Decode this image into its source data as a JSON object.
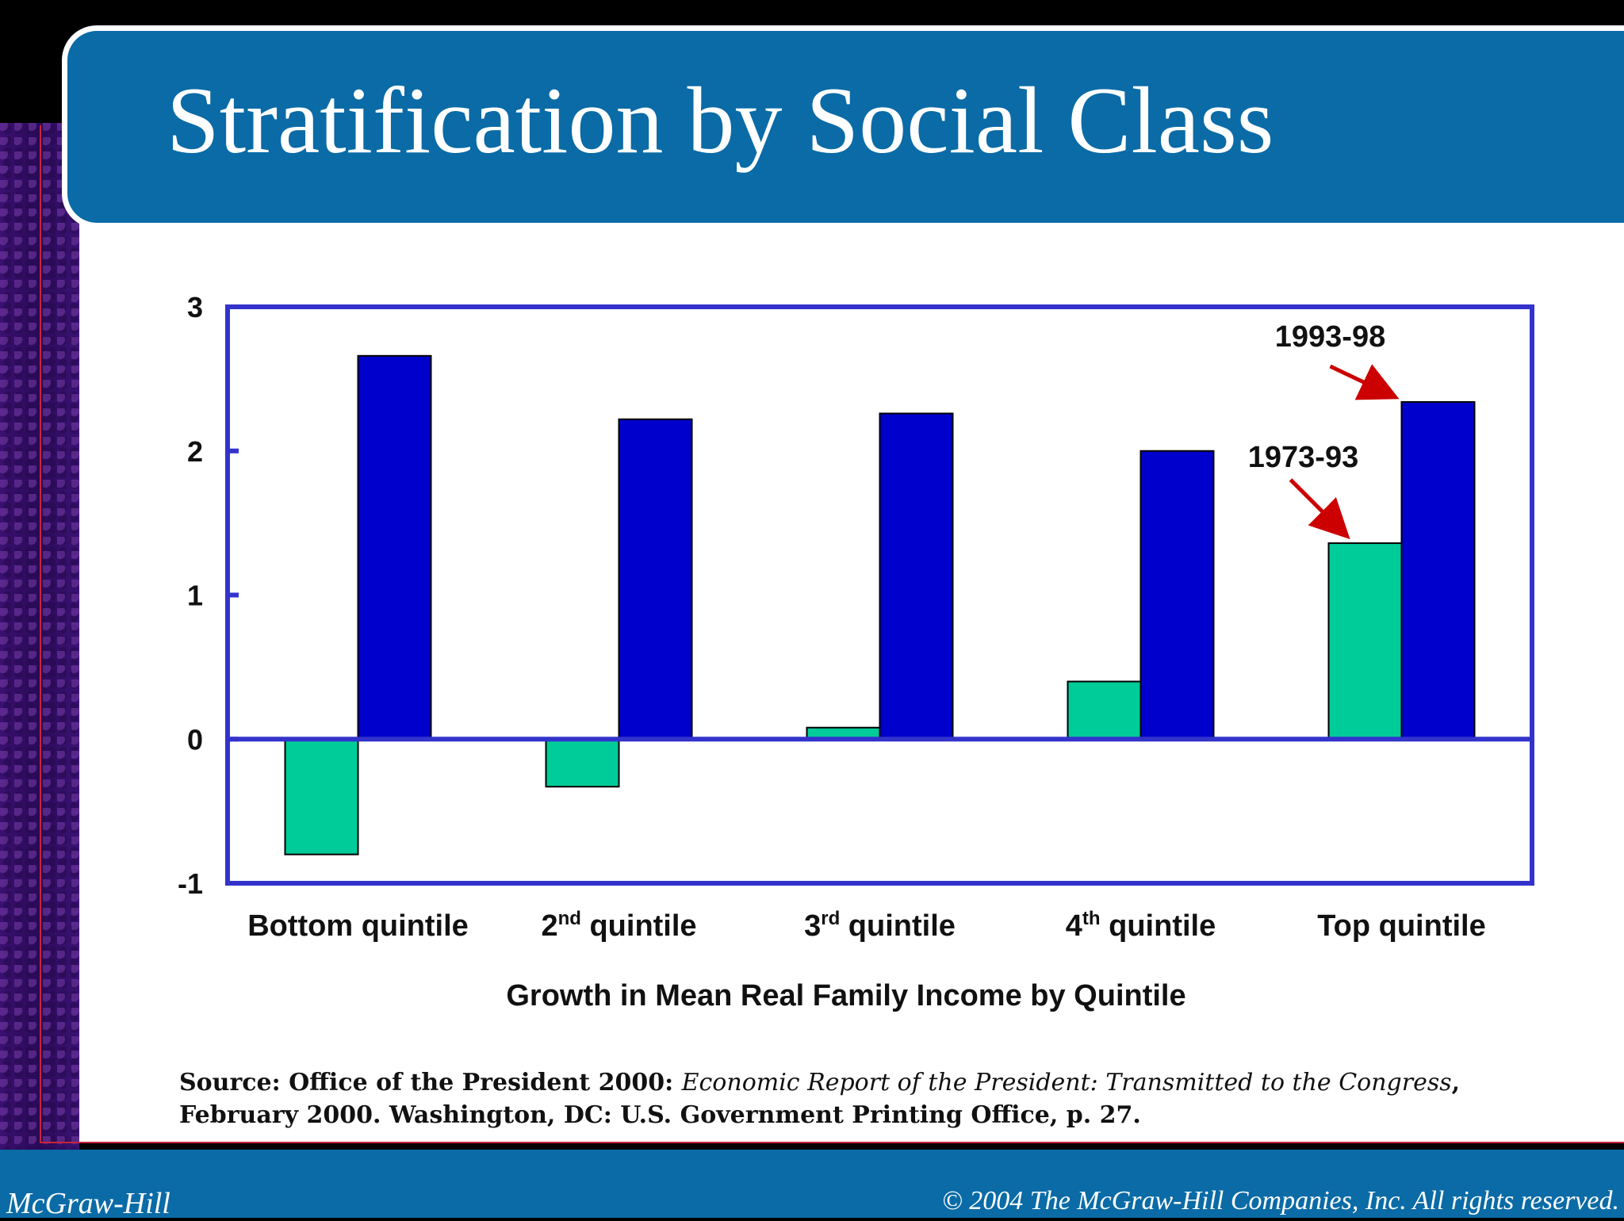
{
  "slide": {
    "title": "Stratification by Social Class",
    "source_prefix": "Source: Office of the President 2000: ",
    "source_italic": "Economic Report of the President: Transmitted to the Congress",
    "source_suffix": ", February 2000. Washington, DC: U.S. Government Printing Office, p. 27."
  },
  "footer": {
    "left": "McGraw-Hill",
    "right": "© 2004 The McGraw-Hill Companies, Inc. All rights reserved."
  },
  "chart_data": {
    "type": "bar",
    "title": "",
    "xlabel": "Growth in Mean Real Family Income by Quintile",
    "ylabel": "",
    "ylim": [
      -1,
      3
    ],
    "yticks": [
      -1,
      0,
      1,
      2,
      3
    ],
    "categories": [
      {
        "base": "Bottom quintile",
        "sup": "",
        "rest": ""
      },
      {
        "base": "2",
        "sup": "nd",
        "rest": " quintile"
      },
      {
        "base": "3",
        "sup": "rd",
        "rest": " quintile"
      },
      {
        "base": "4",
        "sup": "th",
        "rest": " quintile"
      },
      {
        "base": "Top quintile",
        "sup": "",
        "rest": ""
      }
    ],
    "series": [
      {
        "name": "1973-93",
        "color": "#00cc99",
        "values": [
          -0.8,
          -0.33,
          0.08,
          0.4,
          1.36
        ]
      },
      {
        "name": "1993-98",
        "color": "#0000cc",
        "values": [
          2.66,
          2.22,
          2.26,
          2.0,
          2.34
        ]
      }
    ],
    "axis_color": "#3333cc",
    "annotation_color": "#cc0000"
  }
}
